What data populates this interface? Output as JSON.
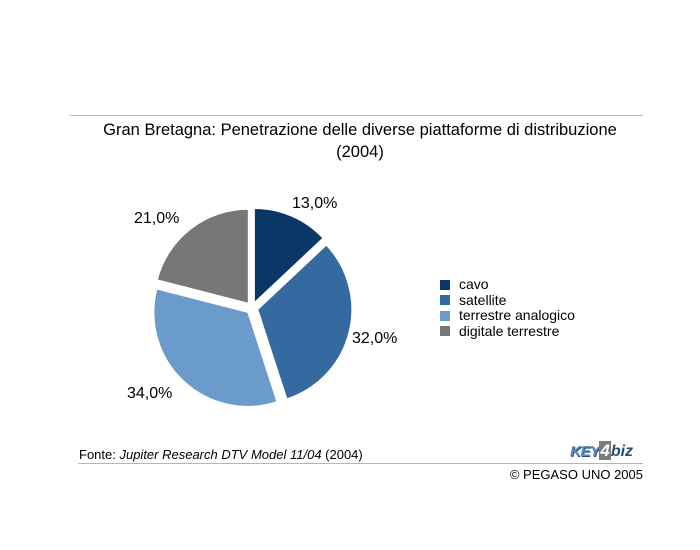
{
  "chart_data": {
    "type": "pie",
    "title": "Gran Bretagna: Penetrazione delle diverse piattaforme di distribuzione (2004)",
    "categories": [
      "cavo",
      "satellite",
      "terrestre analogico",
      "digitale terrestre"
    ],
    "values": [
      13.0,
      32.0,
      34.0,
      21.0
    ],
    "value_labels": [
      "13,0%",
      "32,0%",
      "34,0%",
      "21,0%"
    ],
    "colors": [
      "#0b3767",
      "#346aa0",
      "#6b9bcb",
      "#777777"
    ],
    "legend_position": "right",
    "exploded": true
  },
  "title_line1": "Gran Bretagna: Penetrazione delle diverse piattaforme di distribuzione",
  "title_line2": "(2004)",
  "source": {
    "prefix": "Fonte: ",
    "italic": "Jupiter Research DTV Model 11/04",
    "suffix": " (2004)"
  },
  "copyright": "© PEGASO UNO 2005",
  "logo": {
    "part1": "KEY",
    "part2": "4",
    "part3": "biz"
  }
}
